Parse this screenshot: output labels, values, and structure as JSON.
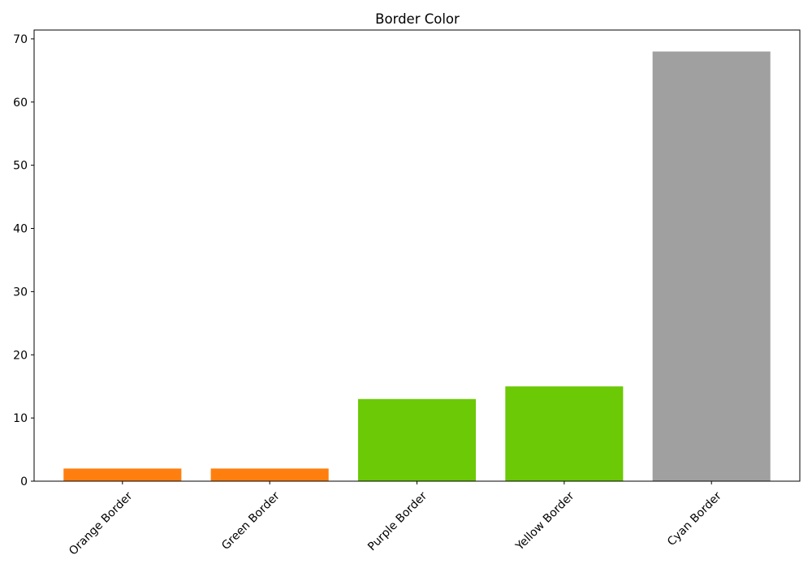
{
  "chart_data": {
    "type": "bar",
    "title": "Border Color",
    "xlabel": "",
    "ylabel": "",
    "categories": [
      "Orange Border",
      "Green Border",
      "Purple Border",
      "Yellow Border",
      "Cyan Border"
    ],
    "values": [
      2,
      2,
      13,
      15,
      68
    ],
    "bar_colors": [
      "#ff7f0e",
      "#ff7f0e",
      "#6bc906",
      "#6bc906",
      "#a0a0a0"
    ],
    "ylim": [
      0,
      71.4
    ],
    "yticks": [
      0,
      10,
      20,
      30,
      40,
      50,
      60,
      70
    ],
    "grid": false,
    "legend": "none"
  }
}
